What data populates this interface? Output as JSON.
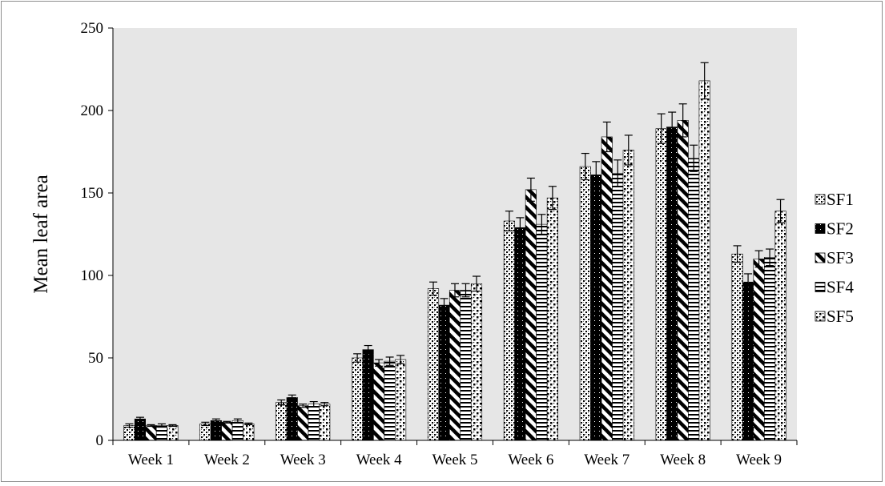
{
  "chart_data": {
    "type": "bar",
    "title": "",
    "xlabel": "",
    "ylabel": "Mean leaf area",
    "ylim": [
      0,
      250
    ],
    "yticks": [
      "0",
      "50",
      "100",
      "150",
      "200",
      "250"
    ],
    "grid": false,
    "legend_position": "right",
    "categories": [
      "Week 1",
      "Week 2",
      "Week 3",
      "Week 4",
      "Week 5",
      "Week 6",
      "Week 7",
      "Week 8",
      "Week 9"
    ],
    "series": [
      {
        "name": "SF1",
        "pattern": "dots",
        "values": [
          9,
          10,
          23,
          50,
          92,
          133,
          166,
          189,
          113
        ],
        "errors": [
          1,
          1,
          1.5,
          2.5,
          4,
          6,
          8,
          9,
          5
        ]
      },
      {
        "name": "SF2",
        "pattern": "solid-dark",
        "values": [
          13,
          12,
          26,
          55,
          82,
          129,
          161,
          190,
          96
        ],
        "errors": [
          1,
          1,
          1.5,
          2.5,
          4,
          6,
          8,
          9,
          5
        ]
      },
      {
        "name": "SF3",
        "pattern": "diagonal",
        "values": [
          9,
          11,
          21,
          47,
          91,
          152,
          184,
          194,
          110
        ],
        "errors": [
          0.5,
          0.5,
          1,
          2,
          4,
          7,
          9,
          10,
          5
        ]
      },
      {
        "name": "SF4",
        "pattern": "horizontal",
        "values": [
          9,
          12,
          22,
          48,
          91,
          131,
          162,
          171,
          111
        ],
        "errors": [
          1,
          1,
          1.5,
          2.5,
          4,
          6,
          8,
          8,
          5
        ]
      },
      {
        "name": "SF5",
        "pattern": "checker",
        "values": [
          9,
          10,
          22,
          49,
          95,
          147,
          176,
          218,
          139
        ],
        "errors": [
          0.5,
          0.5,
          1,
          2.5,
          4.5,
          7,
          9,
          11,
          7
        ]
      }
    ],
    "colors": {
      "plot_bg": "#e6e6e6",
      "bar_ink": "#000000",
      "bar_paper": "#ffffff",
      "axis": "#000000"
    }
  }
}
